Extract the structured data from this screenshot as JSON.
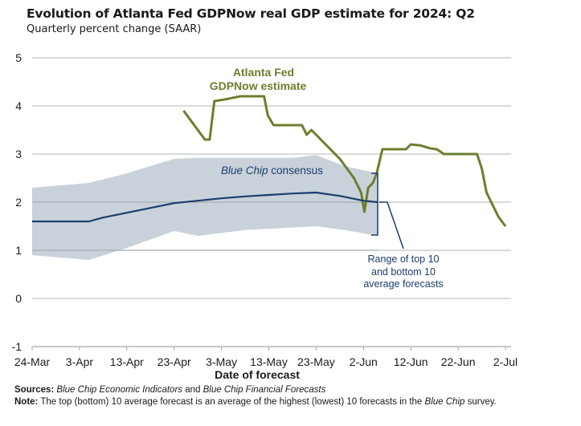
{
  "chart_data": {
    "type": "line",
    "title": "Evolution of Atlanta Fed GDPNow real GDP estimate for 2024: Q2",
    "subtitle": "Quarterly percent change (SAAR)",
    "xlabel": "Date of forecast",
    "ylabel": "",
    "ylim": [
      -1,
      5
    ],
    "yticks": [
      "5",
      "4",
      "3",
      "2",
      "1",
      "0",
      "-1"
    ],
    "ytick_values": [
      5,
      4,
      3,
      2,
      1,
      0,
      -1
    ],
    "xlim_days": [
      0,
      100
    ],
    "xticks": [
      "24-Mar",
      "3-Apr",
      "13-Apr",
      "23-Apr",
      "3-May",
      "13-May",
      "23-May",
      "2-Jun",
      "12-Jun",
      "22-Jun",
      "2-Jul"
    ],
    "xtick_days": [
      0,
      10,
      20,
      30,
      40,
      50,
      60,
      70,
      80,
      90,
      100
    ],
    "grid": true,
    "x_units_note": "days since 24-Mar",
    "series": [
      {
        "name": "Atlanta Fed GDPNow estimate",
        "color": "#6b7f2d",
        "points": [
          [
            32,
            3.9
          ],
          [
            36.5,
            3.3
          ],
          [
            37.5,
            3.3
          ],
          [
            38.5,
            4.1
          ],
          [
            40.5,
            4.13
          ],
          [
            44,
            4.2
          ],
          [
            49,
            4.2
          ],
          [
            49.8,
            3.8
          ],
          [
            51,
            3.6
          ],
          [
            57,
            3.6
          ],
          [
            58,
            3.4
          ],
          [
            59,
            3.5
          ],
          [
            62,
            3.2
          ],
          [
            65,
            2.9
          ],
          [
            68,
            2.5
          ],
          [
            69.5,
            2.2
          ],
          [
            70.2,
            1.8
          ],
          [
            71,
            2.3
          ],
          [
            72,
            2.4
          ],
          [
            72.8,
            2.6
          ],
          [
            74,
            3.1
          ],
          [
            79,
            3.1
          ],
          [
            80,
            3.2
          ],
          [
            82,
            3.18
          ],
          [
            84,
            3.12
          ],
          [
            85.5,
            3.1
          ],
          [
            87,
            3.0
          ],
          [
            94,
            3.0
          ],
          [
            95,
            2.7
          ],
          [
            96,
            2.2
          ],
          [
            98.5,
            1.7
          ],
          [
            100,
            1.5
          ]
        ]
      },
      {
        "name": "Blue Chip consensus",
        "color": "#1c3d6e",
        "points": [
          [
            0,
            1.6
          ],
          [
            12,
            1.6
          ],
          [
            15,
            1.68
          ],
          [
            20,
            1.78
          ],
          [
            25,
            1.88
          ],
          [
            30,
            1.98
          ],
          [
            35,
            2.03
          ],
          [
            40,
            2.08
          ],
          [
            45,
            2.12
          ],
          [
            50,
            2.15
          ],
          [
            55,
            2.18
          ],
          [
            60,
            2.2
          ],
          [
            65,
            2.13
          ],
          [
            70,
            2.03
          ],
          [
            73,
            2.0
          ]
        ]
      },
      {
        "name": "Range of top 10 and bottom 10 average forecasts",
        "type": "area",
        "color": "#c6d0d8",
        "upper": [
          [
            0,
            2.3
          ],
          [
            12,
            2.4
          ],
          [
            20,
            2.6
          ],
          [
            30,
            2.9
          ],
          [
            35,
            2.92
          ],
          [
            55,
            2.92
          ],
          [
            60,
            2.98
          ],
          [
            66,
            2.75
          ],
          [
            73,
            2.6
          ]
        ],
        "lower": [
          [
            0,
            0.9
          ],
          [
            12,
            0.8
          ],
          [
            20,
            1.05
          ],
          [
            30,
            1.4
          ],
          [
            35,
            1.3
          ],
          [
            45,
            1.42
          ],
          [
            60,
            1.5
          ],
          [
            66,
            1.42
          ],
          [
            73,
            1.3
          ]
        ]
      }
    ],
    "annotations": {
      "gdpnow_line1": "Atlanta Fed",
      "gdpnow_line2": "GDPNow estimate",
      "consensus_italic": "Blue Chip",
      "consensus_rest": " consensus",
      "range_line1": "Range of top 10",
      "range_line2": "and bottom 10",
      "range_line3": "average forecasts"
    }
  },
  "footer": {
    "sources_label": "Sources:",
    "sources_italic1": "Blue Chip Economic Indicators",
    "sources_and": " and ",
    "sources_italic2": "Blue Chip Financial Forecasts",
    "note_label": "Note:",
    "note_text": " The top (bottom) 10 average forecast is an average of the highest (lowest) 10 forecasts in the ",
    "note_italic": "Blue Chip",
    "note_end": " survey."
  }
}
